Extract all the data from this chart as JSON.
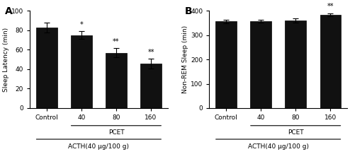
{
  "panel_A": {
    "label": "A",
    "categories": [
      "Control",
      "40",
      "80",
      "160"
    ],
    "values": [
      83,
      75,
      57,
      46
    ],
    "errors": [
      5,
      4,
      5,
      5
    ],
    "ylabel": "Sleep Latency (min)",
    "ylim": [
      0,
      100
    ],
    "yticks": [
      0,
      20,
      40,
      60,
      80,
      100
    ],
    "significance": [
      "",
      "*",
      "**",
      "**"
    ],
    "bar_color": "#111111",
    "pcet_label": "PCET",
    "acth_label": "ACTH(40 μg/100 g)"
  },
  "panel_B": {
    "label": "B",
    "categories": [
      "Control",
      "40",
      "80",
      "160"
    ],
    "values": [
      357,
      358,
      360,
      385
    ],
    "errors": [
      8,
      7,
      8,
      6
    ],
    "ylabel": "Non-REM Sleep (min)",
    "ylim": [
      0,
      400
    ],
    "yticks": [
      0,
      100,
      200,
      300,
      400
    ],
    "significance": [
      "",
      "",
      "",
      "**"
    ],
    "bar_color": "#111111",
    "pcet_label": "PCET",
    "acth_label": "ACTH(40 μg/100 g)"
  }
}
